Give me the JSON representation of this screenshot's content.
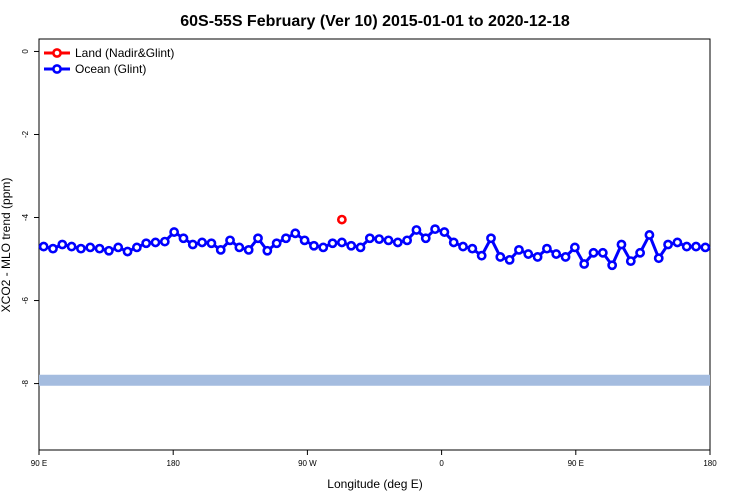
{
  "chart_data": {
    "type": "line",
    "title": "60S-55S February (Ver 10)   2015-01-01 to 2020-12-18",
    "xlabel": "Longitude (deg E)",
    "ylabel": "XCO2 - MLO trend (ppm)",
    "xlim": [
      90,
      450
    ],
    "ylim": [
      -9.6,
      0.3
    ],
    "x_ticks": [
      {
        "value": 90,
        "label": "90 E"
      },
      {
        "value": 162,
        "label": "180"
      },
      {
        "value": 234,
        "label": "90 W"
      },
      {
        "value": 306,
        "label": "0"
      },
      {
        "value": 378,
        "label": "90 E"
      },
      {
        "value": 450,
        "label": "180"
      }
    ],
    "y_ticks": [
      {
        "value": 0,
        "label": "0"
      },
      {
        "value": -2,
        "label": "-2"
      },
      {
        "value": -4,
        "label": "-4"
      },
      {
        "value": -6,
        "label": "-6"
      },
      {
        "value": -8,
        "label": "-8"
      }
    ],
    "legend_position": "top-left",
    "series": [
      {
        "name": "Land (Nadir&Glint)",
        "color": "#ff0000",
        "lines": false,
        "x": [
          252.5
        ],
        "y": [
          -4.05
        ]
      },
      {
        "name": "Ocean (Glint)",
        "color": "#0000ff",
        "lines": true,
        "x": [
          92.5,
          97.5,
          102.5,
          107.5,
          112.5,
          117.5,
          122.5,
          127.5,
          132.5,
          137.5,
          142.5,
          147.5,
          152.5,
          157.5,
          162.5,
          167.5,
          172.5,
          177.5,
          182.5,
          187.5,
          192.5,
          197.5,
          202.5,
          207.5,
          212.5,
          217.5,
          222.5,
          227.5,
          232.5,
          237.5,
          242.5,
          247.5,
          252.5,
          257.5,
          262.5,
          267.5,
          272.5,
          277.5,
          282.5,
          287.5,
          292.5,
          297.5,
          302.5,
          307.5,
          312.5,
          317.5,
          322.5,
          327.5,
          332.5,
          337.5,
          342.5,
          347.5,
          352.5,
          357.5,
          362.5,
          367.5,
          372.5,
          377.5,
          382.5,
          387.5,
          392.5,
          397.5,
          402.5,
          407.5,
          412.5,
          417.5,
          422.5,
          427.5,
          432.5,
          437.5,
          442.5,
          447.5
        ],
        "y": [
          -4.7,
          -4.75,
          -4.65,
          -4.7,
          -4.75,
          -4.72,
          -4.75,
          -4.8,
          -4.72,
          -4.82,
          -4.72,
          -4.62,
          -4.6,
          -4.58,
          -4.35,
          -4.5,
          -4.65,
          -4.6,
          -4.62,
          -4.78,
          -4.55,
          -4.72,
          -4.78,
          -4.5,
          -4.8,
          -4.62,
          -4.5,
          -4.38,
          -4.55,
          -4.68,
          -4.72,
          -4.62,
          -4.6,
          -4.68,
          -4.72,
          -4.5,
          -4.52,
          -4.55,
          -4.6,
          -4.55,
          -4.3,
          -4.5,
          -4.28,
          -4.35,
          -4.6,
          -4.7,
          -4.75,
          -4.92,
          -4.5,
          -4.95,
          -5.02,
          -4.78,
          -4.88,
          -4.95,
          -4.75,
          -4.88,
          -4.95,
          -4.72,
          -5.12,
          -4.85,
          -4.85,
          -5.15,
          -4.65,
          -5.05,
          -4.85,
          -4.42,
          -4.98,
          -4.65,
          -4.6,
          -4.7,
          -4.7,
          -4.72
        ]
      }
    ],
    "band": {
      "color": "#a4bcdf",
      "y": -7.92
    }
  }
}
